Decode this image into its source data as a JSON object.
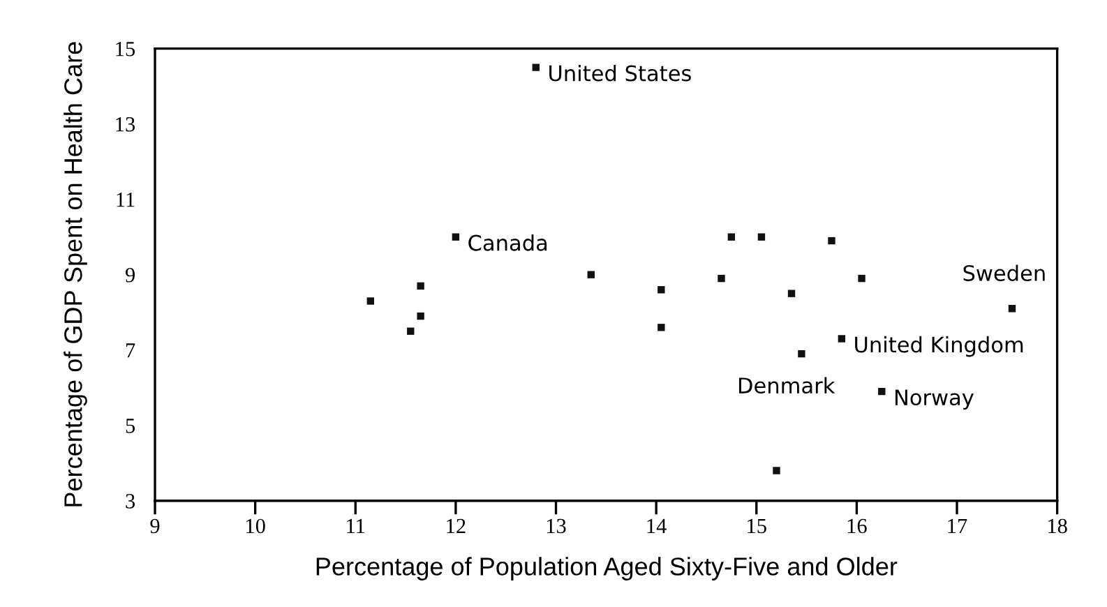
{
  "chart_data": {
    "type": "scatter",
    "xlabel": "Percentage of Population Aged Sixty-Five and Older",
    "ylabel": "Percentage of GDP Spent on Health Care",
    "x": [
      12.8,
      12.0,
      11.15,
      11.65,
      11.65,
      11.55,
      13.35,
      14.05,
      14.05,
      14.65,
      14.75,
      15.05,
      15.75,
      16.05,
      15.35,
      15.45,
      15.85,
      16.25,
      17.55,
      15.2
    ],
    "series": [
      {
        "color": "#111111",
        "values": [
          14.5,
          10.0,
          8.3,
          8.7,
          7.9,
          7.5,
          9.0,
          8.6,
          7.6,
          8.9,
          10.0,
          10.0,
          9.9,
          8.9,
          8.5,
          6.9,
          7.3,
          5.9,
          8.1,
          3.8
        ]
      }
    ],
    "marker": "square",
    "annotations": [
      {
        "text": "United States",
        "x": 12.8,
        "y": 14.5
      },
      {
        "text": "Canada",
        "x": 12.0,
        "y": 10.0
      },
      {
        "text": "Denmark",
        "x": 15.45,
        "y": 6.9
      },
      {
        "text": "United Kingdom",
        "x": 15.85,
        "y": 7.3
      },
      {
        "text": "Norway",
        "x": 16.25,
        "y": 5.9
      },
      {
        "text": "Sweden",
        "x": 17.55,
        "y": 8.1
      }
    ],
    "xlim": [
      9,
      18
    ],
    "ylim": [
      3,
      15
    ],
    "xticks": [
      9,
      10,
      11,
      12,
      13,
      14,
      15,
      16,
      17,
      18
    ],
    "yticks": [
      3,
      5,
      7,
      9,
      11,
      13,
      15
    ],
    "grid": false,
    "legend": false
  }
}
